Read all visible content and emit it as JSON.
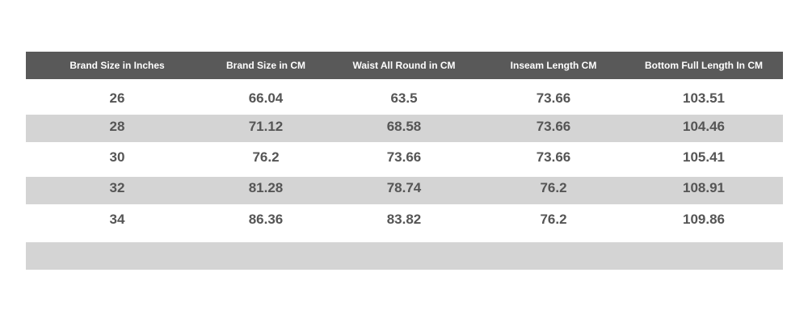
{
  "table": {
    "columns": [
      "Brand Size in Inches",
      "Brand Size in CM",
      "Waist All Round in CM",
      "Inseam Length CM",
      "Bottom Full Length In CM"
    ],
    "rows": [
      [
        "26",
        "66.04",
        "63.5",
        "73.66",
        "103.51"
      ],
      [
        "28",
        "71.12",
        "68.58",
        "73.66",
        "104.46"
      ],
      [
        "30",
        "76.2",
        "73.66",
        "73.66",
        "105.41"
      ],
      [
        "32",
        "81.28",
        "78.74",
        "76.2",
        "108.91"
      ],
      [
        "34",
        "86.36",
        "83.82",
        "76.2",
        "109.86"
      ]
    ]
  }
}
